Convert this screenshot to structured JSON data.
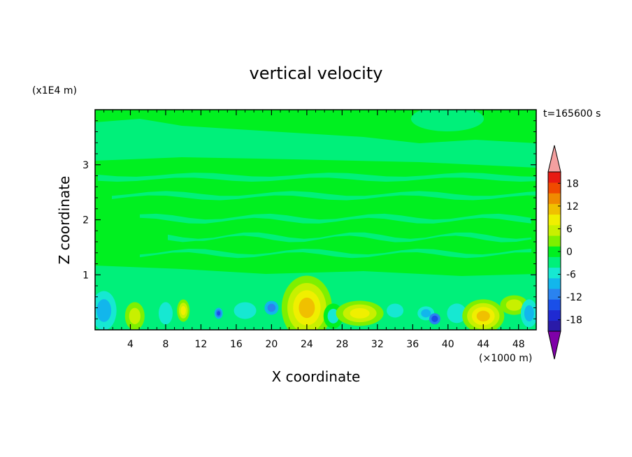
{
  "chart_data": {
    "type": "heatmap",
    "title": "vertical velocity",
    "xlabel": "X coordinate",
    "ylabel": "Z coordinate",
    "x_unit": "(×1000 m)",
    "y_unit": "(x1E4 m)",
    "time_label": "t=165600 s",
    "xlim": [
      0,
      50
    ],
    "ylim": [
      0,
      4
    ],
    "x_ticks": [
      4,
      8,
      12,
      16,
      20,
      24,
      28,
      32,
      36,
      40,
      44,
      48
    ],
    "y_ticks": [
      1,
      2,
      3
    ],
    "colorbar": {
      "tick_values": [
        18,
        12,
        6,
        0,
        -6,
        -12,
        -18
      ],
      "tick_labels": [
        "18",
        "12",
        "6",
        "0",
        "-6",
        "-12",
        "-18"
      ],
      "levels": [
        -21,
        -18,
        -15,
        -12,
        -9,
        -6,
        -3,
        0,
        3,
        6,
        9,
        12,
        15,
        18,
        21
      ],
      "colors": [
        "#7f00a8",
        "#2a1aa8",
        "#1f2ad2",
        "#1a4fe8",
        "#2a83f0",
        "#12b6ec",
        "#16e8d2",
        "#00f07a",
        "#00f020",
        "#7ef000",
        "#c8f000",
        "#f0ef00",
        "#f0c000",
        "#f08a00",
        "#f04a00",
        "#e81a12",
        "#f4a0a0"
      ]
    }
  }
}
